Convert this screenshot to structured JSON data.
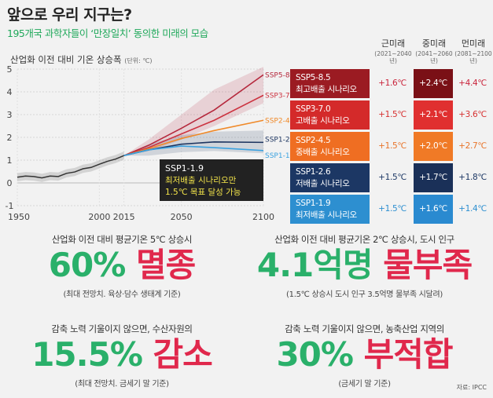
{
  "header": {
    "title": "앞으로 우리 지구는?",
    "subtitle": "195개국 과학자들이 ‘만장일치’ 동의한 미래의 모습"
  },
  "chart_data": {
    "type": "line",
    "title": "산업화 이전 대비 기온 상승폭",
    "unit": "(단위: ℃)",
    "xticks": [
      "1950",
      "2000",
      "2015",
      "2050",
      "2100"
    ],
    "xlim": [
      1950,
      2100
    ],
    "yticks": [
      "5",
      "4",
      "3",
      "2",
      "1",
      "0",
      "-1"
    ],
    "ylim": [
      -1,
      5
    ],
    "historical": {
      "x": [
        1950,
        1955,
        1960,
        1965,
        1970,
        1975,
        1980,
        1985,
        1990,
        1995,
        2000,
        2005,
        2010,
        2015
      ],
      "y": [
        0.25,
        0.3,
        0.28,
        0.22,
        0.3,
        0.28,
        0.42,
        0.48,
        0.62,
        0.68,
        0.82,
        0.95,
        1.05,
        1.2
      ]
    },
    "series": [
      {
        "name": "SSP5-8.5",
        "color": "#b5283c",
        "x": [
          2015,
          2030,
          2050,
          2070,
          2100
        ],
        "y": [
          1.2,
          1.65,
          2.4,
          3.2,
          4.75
        ],
        "band_low": [
          1.2,
          1.4,
          1.9,
          2.5,
          3.5
        ],
        "band_high": [
          1.2,
          1.9,
          3.0,
          4.1,
          5.1
        ]
      },
      {
        "name": "SSP3-7.0",
        "color": "#cc3340",
        "x": [
          2015,
          2030,
          2050,
          2070,
          2100
        ],
        "y": [
          1.2,
          1.55,
          2.15,
          2.75,
          3.85
        ]
      },
      {
        "name": "SSP2-4.5",
        "color": "#f08a2a",
        "x": [
          2015,
          2030,
          2050,
          2070,
          2100
        ],
        "y": [
          1.2,
          1.5,
          1.95,
          2.3,
          2.75
        ]
      },
      {
        "name": "SSP1-2.6",
        "color": "#1d3560",
        "x": [
          2015,
          2030,
          2050,
          2070,
          2100
        ],
        "y": [
          1.2,
          1.45,
          1.7,
          1.8,
          1.78
        ],
        "band_low": [
          1.2,
          1.2,
          1.35,
          1.4,
          1.3
        ],
        "band_high": [
          1.2,
          1.7,
          2.1,
          2.25,
          2.3
        ]
      },
      {
        "name": "SSP1-1.9",
        "color": "#3ba2e0",
        "x": [
          2015,
          2030,
          2050,
          2070,
          2100
        ],
        "y": [
          1.2,
          1.45,
          1.62,
          1.55,
          1.42
        ]
      }
    ],
    "callout": {
      "line1": "SSP1-1.9",
      "line2": "최저배출 시나리오만",
      "line3": "1.5℃ 목표 달성 가능"
    }
  },
  "scenario_table": {
    "columns": [
      {
        "name": "근미래",
        "range": "(2021~2040년)"
      },
      {
        "name": "중미래",
        "range": "(2041~2060년)"
      },
      {
        "name": "먼미래",
        "range": "(2081~2100년)"
      }
    ],
    "rows": [
      {
        "code": "SSP5-8.5",
        "desc": "최고배출 시나리오",
        "values": [
          "+1.6℃",
          "+2.4℃",
          "+4.4℃"
        ],
        "color": "#9b1b22",
        "mid_color": "#7a1016",
        "val_color": "#c9233a"
      },
      {
        "code": "SSP3-7.0",
        "desc": "고배출 시나리오",
        "values": [
          "+1.5℃",
          "+2.1℃",
          "+3.6℃"
        ],
        "color": "#d42a2a",
        "mid_color": "#e03030",
        "val_color": "#d63030"
      },
      {
        "code": "SSP2-4.5",
        "desc": "중배출 시나리오",
        "values": [
          "+1.5℃",
          "+2.0℃",
          "+2.7℃"
        ],
        "color": "#ef6e22",
        "mid_color": "#f07a26",
        "val_color": "#e8742a"
      },
      {
        "code": "SSP1-2.6",
        "desc": "저배출 시나리오",
        "values": [
          "+1.5℃",
          "+1.7℃",
          "+1.8℃"
        ],
        "color": "#1c3764",
        "mid_color": "#1a3058",
        "val_color": "#1c3764"
      },
      {
        "code": "SSP1-1.9",
        "desc": "최저배출 시나리오",
        "values": [
          "+1.5℃",
          "+1.6℃",
          "+1.4℃"
        ],
        "color": "#2d8fd0",
        "mid_color": "#2a8ad0",
        "val_color": "#2d8fd0"
      }
    ]
  },
  "stats": [
    {
      "caption": "산업화 이전 대비 평균기온 5℃ 상승시",
      "number": "60%",
      "word": "멸종",
      "note": "(최대 전망치. 육상·담수 생태계 기준)"
    },
    {
      "caption": "산업화 이전 대비 평균기온 2℃ 상승시, 도시 인구",
      "number": "4.1억명",
      "word": "물부족",
      "note": "(1.5℃ 상승시 도시 인구 3.5억명 물부족 시달려)"
    },
    {
      "caption": "감축 노력 기울이지 않으면, 수산자원의",
      "number": "15.5%",
      "word": "감소",
      "note": "(최대 전망치. 금세기 말 기준)"
    },
    {
      "caption": "감축 노력 기울이지 않으면, 농축산업 지역의",
      "number": "30%",
      "word": "부적합",
      "note": "(금세기 말 기준)"
    }
  ],
  "source": "자료: IPCC"
}
